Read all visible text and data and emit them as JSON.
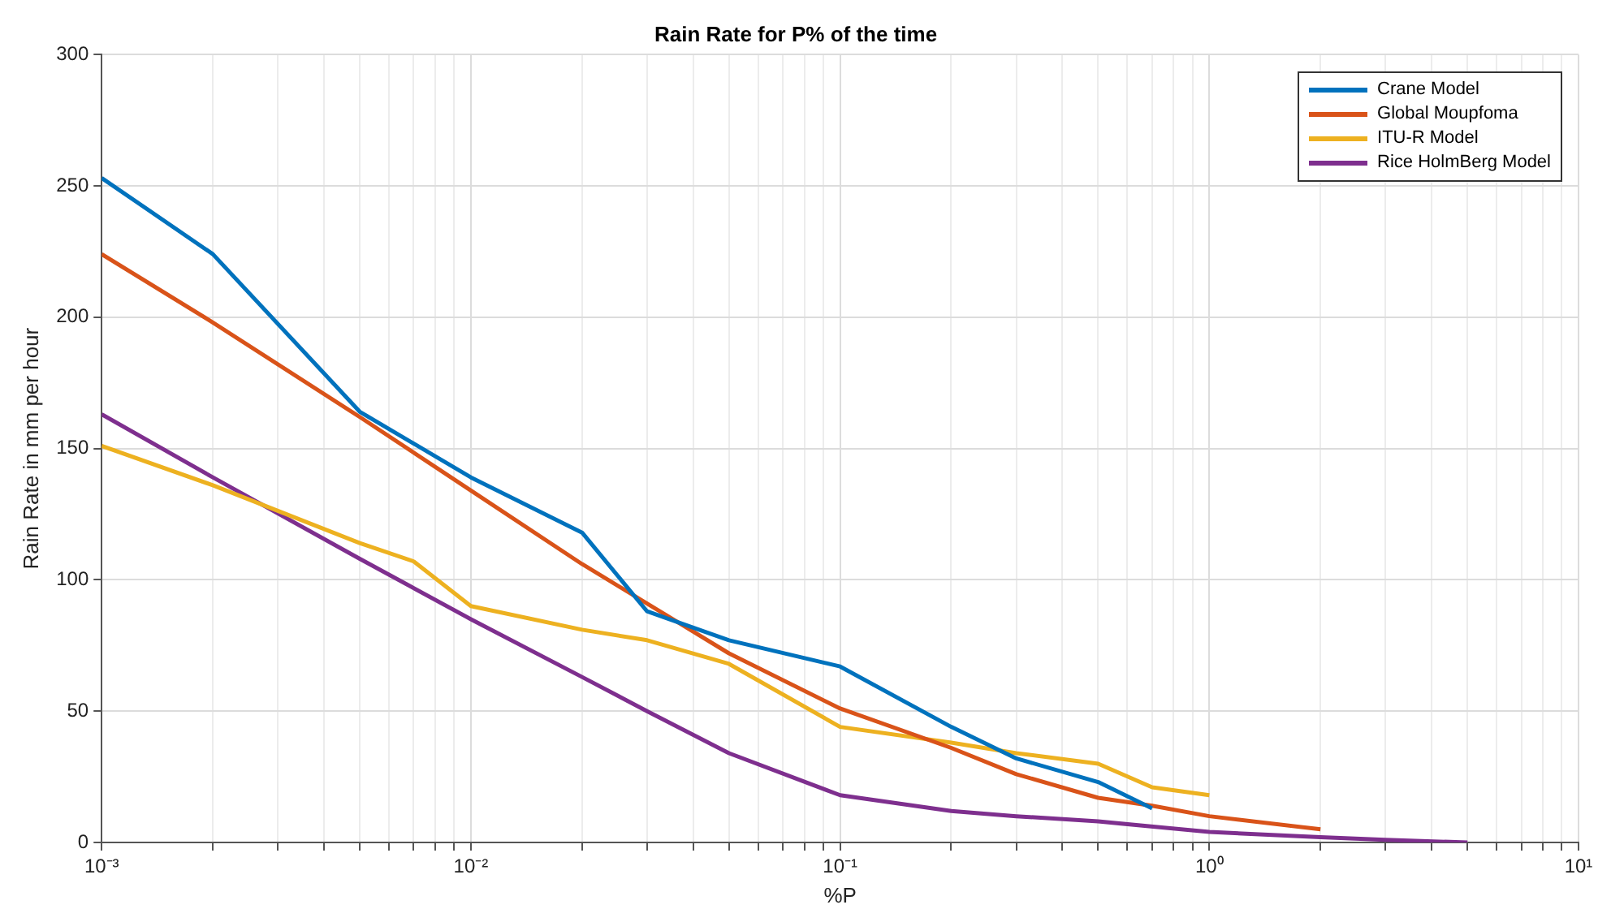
{
  "chart_data": {
    "type": "line",
    "title": "Rain Rate for P% of the time",
    "xlabel": "%P",
    "ylabel": "Rain Rate in mm per hour",
    "log": "x",
    "grid": true,
    "legend": "top right",
    "marker": "none",
    "line_style": "solid",
    "xlim": [
      0.001,
      10
    ],
    "ylim": [
      0,
      300
    ],
    "yticks": [
      0,
      50,
      100,
      150,
      200,
      250,
      300
    ],
    "xticks": [
      {
        "value": 0.001,
        "label": "10⁻³"
      },
      {
        "value": 0.002,
        "label": null
      },
      {
        "value": 0.003,
        "label": null
      },
      {
        "value": 0.004,
        "label": null
      },
      {
        "value": 0.005,
        "label": null
      },
      {
        "value": 0.006,
        "label": null
      },
      {
        "value": 0.007,
        "label": null
      },
      {
        "value": 0.008,
        "label": null
      },
      {
        "value": 0.009,
        "label": null
      },
      {
        "value": 0.01,
        "label": "10⁻²"
      },
      {
        "value": 0.02,
        "label": null
      },
      {
        "value": 0.03,
        "label": null
      },
      {
        "value": 0.04,
        "label": null
      },
      {
        "value": 0.05,
        "label": null
      },
      {
        "value": 0.06,
        "label": null
      },
      {
        "value": 0.07,
        "label": null
      },
      {
        "value": 0.08,
        "label": null
      },
      {
        "value": 0.09,
        "label": null
      },
      {
        "value": 0.1,
        "label": "10⁻¹"
      },
      {
        "value": 0.2,
        "label": null
      },
      {
        "value": 0.3,
        "label": null
      },
      {
        "value": 0.4,
        "label": null
      },
      {
        "value": 0.5,
        "label": null
      },
      {
        "value": 0.6,
        "label": null
      },
      {
        "value": 0.7,
        "label": null
      },
      {
        "value": 0.8,
        "label": null
      },
      {
        "value": 0.9,
        "label": null
      },
      {
        "value": 1,
        "label": "10⁰"
      },
      {
        "value": 2,
        "label": null
      },
      {
        "value": 3,
        "label": null
      },
      {
        "value": 4,
        "label": null
      },
      {
        "value": 5,
        "label": null
      },
      {
        "value": 6,
        "label": null
      },
      {
        "value": 7,
        "label": null
      },
      {
        "value": 8,
        "label": null
      },
      {
        "value": 9,
        "label": null
      },
      {
        "value": 10,
        "label": "10¹"
      }
    ],
    "series": [
      {
        "name": "Crane Model",
        "color": "#0072bd",
        "x": [
          0.001,
          0.002,
          0.005,
          0.01,
          0.02,
          0.03,
          0.05,
          0.1,
          0.2,
          0.3,
          0.5,
          0.7
        ],
        "values": [
          253,
          224,
          164,
          139,
          118,
          88,
          77,
          67,
          44,
          32,
          23,
          13
        ]
      },
      {
        "name": "Global Moupfoma",
        "color": "#d95319",
        "x": [
          0.001,
          0.002,
          0.005,
          0.01,
          0.02,
          0.03,
          0.05,
          0.1,
          0.2,
          0.3,
          0.5,
          0.7,
          1,
          2
        ],
        "values": [
          224,
          198,
          162,
          134,
          106,
          91,
          72,
          51,
          36,
          26,
          17,
          14,
          10,
          5
        ]
      },
      {
        "name": "ITU-R Model",
        "color": "#edb120",
        "x": [
          0.001,
          0.002,
          0.005,
          0.007,
          0.01,
          0.02,
          0.03,
          0.05,
          0.1,
          0.2,
          0.3,
          0.5,
          0.7,
          1
        ],
        "values": [
          151,
          136,
          114,
          107,
          90,
          81,
          77,
          68,
          44,
          38,
          34,
          30,
          21,
          18
        ]
      },
      {
        "name": "Rice HolmBerg Model",
        "color": "#7e2f8e",
        "x": [
          0.001,
          0.002,
          0.005,
          0.01,
          0.02,
          0.03,
          0.05,
          0.1,
          0.2,
          0.3,
          0.5,
          1,
          2,
          3,
          5
        ],
        "values": [
          163,
          139,
          108,
          85,
          63,
          50,
          34,
          18,
          12,
          10,
          8,
          4,
          2,
          1,
          0
        ]
      }
    ]
  }
}
